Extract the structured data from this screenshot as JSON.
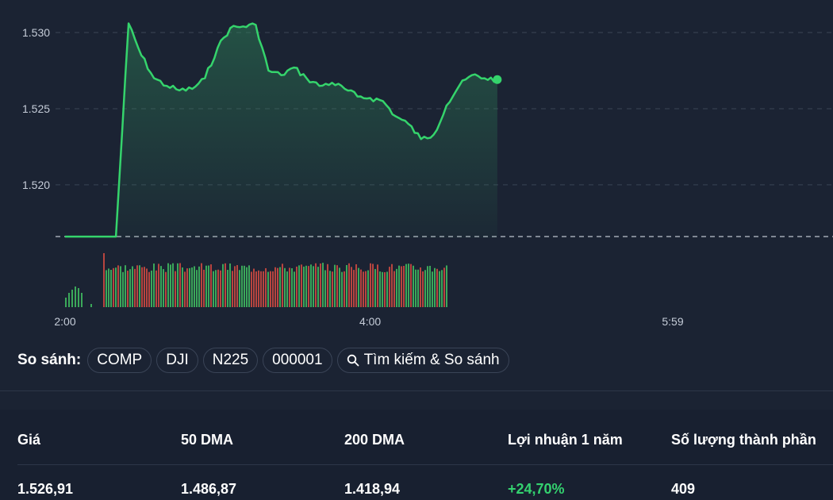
{
  "chart": {
    "y_ticks": [
      "1.530",
      "1.525",
      "1.520"
    ],
    "x_ticks": [
      "2:00",
      "4:00",
      "5:59"
    ],
    "colors": {
      "line": "#35d46c",
      "volume_up": "#3ba85a",
      "volume_down": "#b8453f",
      "grid": "#3b4456",
      "background": "#1b2333"
    }
  },
  "chart_data": {
    "type": "line",
    "x_axis": "time",
    "x_range": [
      "2:00",
      "5:59"
    ],
    "y_range": [
      1.5165,
      1.5312
    ],
    "previous_close": 1.5166,
    "last_value": 1.52691,
    "x": [
      "2:00",
      "2:05",
      "2:10",
      "2:15",
      "2:20",
      "2:25",
      "2:30",
      "2:35",
      "2:40",
      "2:45",
      "2:50",
      "2:55",
      "3:00",
      "3:05",
      "3:10",
      "3:15",
      "3:20",
      "3:25",
      "3:30",
      "3:35",
      "3:40",
      "3:45",
      "3:50",
      "3:55",
      "4:00",
      "4:05",
      "4:10",
      "4:15",
      "4:20",
      "4:25",
      "4:30",
      "4:35",
      "4:40",
      "4:45",
      "4:50"
    ],
    "price": [
      1.5166,
      1.5166,
      1.5166,
      1.5166,
      1.5166,
      1.5306,
      1.5285,
      1.527,
      1.5265,
      1.5262,
      1.5263,
      1.527,
      1.529,
      1.5303,
      1.5304,
      1.5305,
      1.5275,
      1.5272,
      1.5277,
      1.527,
      1.5265,
      1.5267,
      1.5263,
      1.5258,
      1.5257,
      1.5255,
      1.5245,
      1.524,
      1.523,
      1.5233,
      1.5252,
      1.5265,
      1.5272,
      1.527,
      1.52691
    ],
    "volume_note": "volume bars shown below price line; values not labeled"
  },
  "compare": {
    "label": "So sánh:",
    "chips": [
      "COMP",
      "DJI",
      "N225",
      "000001"
    ],
    "search_label": "Tìm kiếm & So sánh"
  },
  "stats": {
    "headers": [
      "Giá",
      "50 DMA",
      "200 DMA",
      "Lợi nhuận 1 năm",
      "Số lượng thành phần"
    ],
    "values": [
      "1.526,91",
      "1.486,87",
      "1.418,94",
      "+24,70%",
      "409"
    ]
  }
}
